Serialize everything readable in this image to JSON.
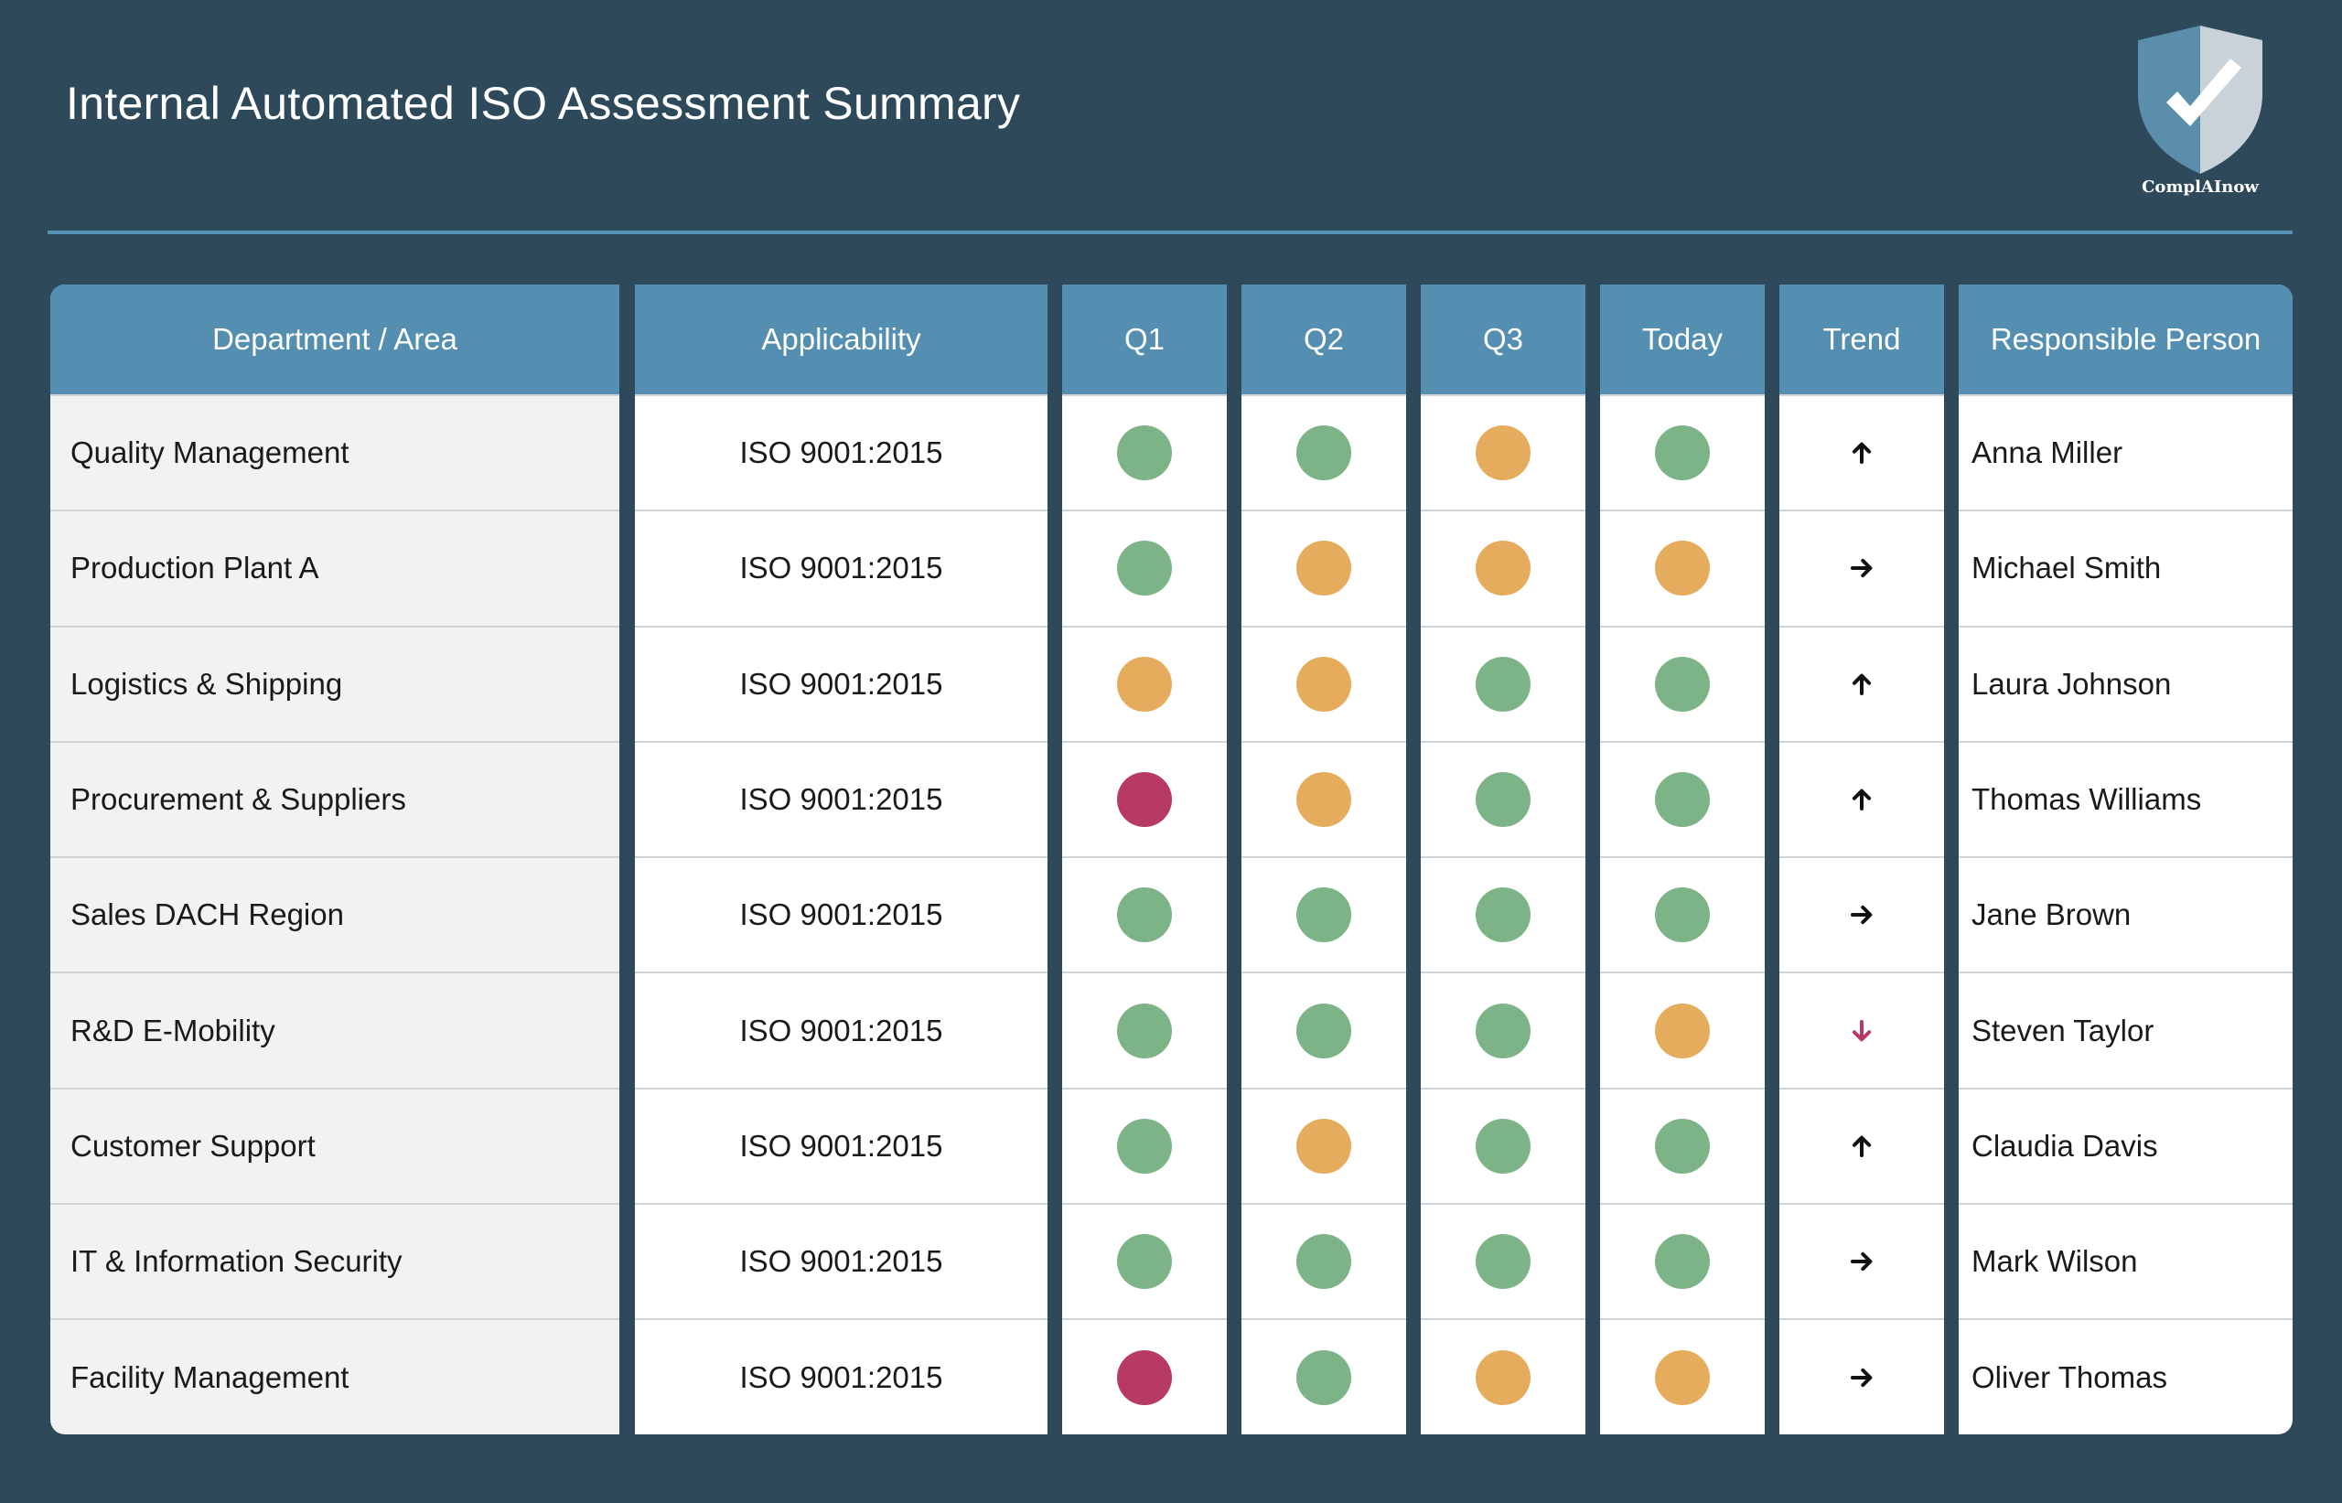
{
  "title": "Internal Automated ISO Assessment Summary",
  "logo": {
    "text": "ComplAInow",
    "icon": "shield-check-icon"
  },
  "colors": {
    "background": "#2e4a5a",
    "header": "#548eb1",
    "green": "#7db487",
    "amber": "#e6ac5e",
    "red": "#b73a63",
    "trend_down": "#b73a63"
  },
  "table": {
    "headers": [
      "Department / Area",
      "Applicability",
      "Q1",
      "Q2",
      "Q3",
      "Today",
      "Trend",
      "Responsible Person"
    ],
    "rows": [
      {
        "department": "Quality Management",
        "applicability": "ISO 9001:2015",
        "q1": "green",
        "q2": "green",
        "q3": "amber",
        "today": "green",
        "trend": "up",
        "person": "Anna Miller"
      },
      {
        "department": "Production Plant A",
        "applicability": "ISO 9001:2015",
        "q1": "green",
        "q2": "amber",
        "q3": "amber",
        "today": "amber",
        "trend": "right",
        "person": "Michael Smith"
      },
      {
        "department": "Logistics & Shipping",
        "applicability": "ISO 9001:2015",
        "q1": "amber",
        "q2": "amber",
        "q3": "green",
        "today": "green",
        "trend": "up",
        "person": "Laura Johnson"
      },
      {
        "department": "Procurement & Suppliers",
        "applicability": "ISO 9001:2015",
        "q1": "red",
        "q2": "amber",
        "q3": "green",
        "today": "green",
        "trend": "up",
        "person": "Thomas Williams"
      },
      {
        "department": "Sales DACH Region",
        "applicability": "ISO 9001:2015",
        "q1": "green",
        "q2": "green",
        "q3": "green",
        "today": "green",
        "trend": "right",
        "person": "Jane Brown"
      },
      {
        "department": "R&D E-Mobility",
        "applicability": "ISO 9001:2015",
        "q1": "green",
        "q2": "green",
        "q3": "green",
        "today": "amber",
        "trend": "down",
        "person": "Steven Taylor"
      },
      {
        "department": "Customer Support",
        "applicability": "ISO 9001:2015",
        "q1": "green",
        "q2": "amber",
        "q3": "green",
        "today": "green",
        "trend": "up",
        "person": "Claudia Davis"
      },
      {
        "department": "IT & Information Security",
        "applicability": "ISO 9001:2015",
        "q1": "green",
        "q2": "green",
        "q3": "green",
        "today": "green",
        "trend": "right",
        "person": "Mark Wilson"
      },
      {
        "department": "Facility Management",
        "applicability": "ISO 9001:2015",
        "q1": "red",
        "q2": "green",
        "q3": "amber",
        "today": "amber",
        "trend": "right",
        "person": "Oliver Thomas"
      }
    ]
  }
}
